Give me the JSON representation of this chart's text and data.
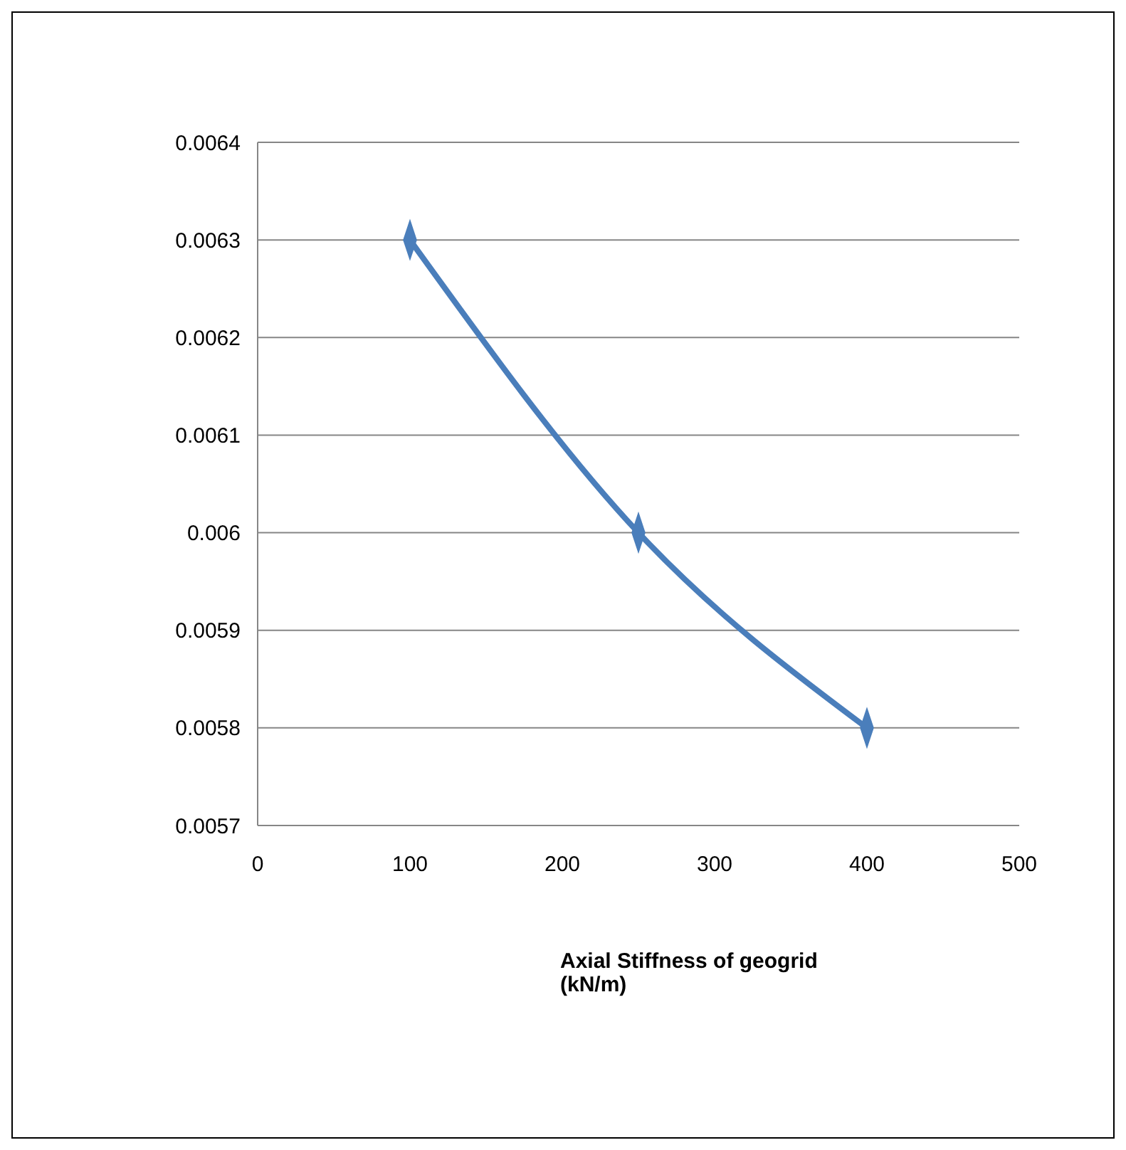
{
  "chart_data": {
    "type": "line",
    "xlabel": "Axial Stiffness of geogrid (kN/m)",
    "x": [
      100,
      250,
      400
    ],
    "series": [
      {
        "color": "#4a7ebb",
        "values": [
          0.0063,
          0.006,
          0.0058
        ]
      }
    ],
    "xlim": [
      0,
      500
    ],
    "xticks": [
      0,
      100,
      200,
      300,
      400,
      500
    ],
    "ylim": [
      0.0057,
      0.0064
    ],
    "yticks": [
      0.0057,
      0.0058,
      0.0059,
      0.006,
      0.0061,
      0.0062,
      0.0063,
      0.0064
    ],
    "grid": "y",
    "marker": "diamond",
    "line_style": "solid"
  }
}
